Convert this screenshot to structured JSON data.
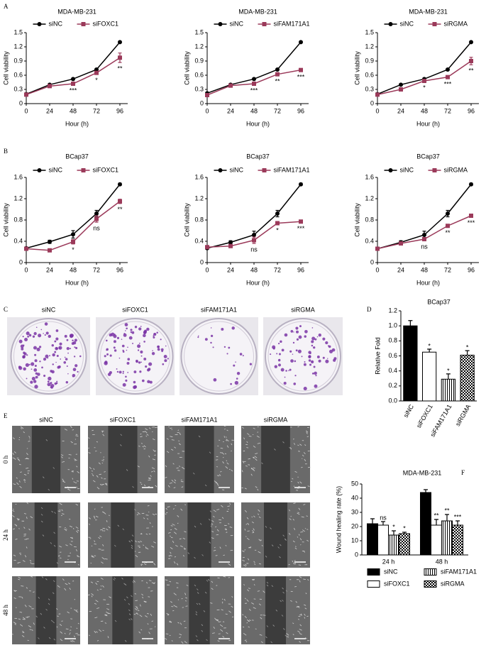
{
  "figure": {
    "panel_labels": [
      "A",
      "B",
      "C",
      "D",
      "E",
      "F"
    ],
    "colony_labels": [
      "siNC",
      "siFOXC1",
      "siFAM171A1",
      "siRGMA"
    ],
    "wound_columns": [
      "siNC",
      "siFOXC1",
      "siFAM171A1",
      "siRGMA"
    ],
    "wound_rows": [
      "0 h",
      "24 h",
      "48 h"
    ]
  },
  "chart_data": [
    {
      "type": "line",
      "title": "MDA-MB-231",
      "x": [
        0,
        24,
        48,
        72,
        96
      ],
      "xlim": [
        0,
        104
      ],
      "xticks": [
        0,
        24,
        48,
        72,
        96
      ],
      "ylim": [
        0,
        1.5
      ],
      "yticks": [
        0,
        0.3,
        0.6,
        0.9,
        1.2,
        1.5
      ],
      "xlabel": "Hour (h)",
      "ylabel": "Cell viability",
      "series": [
        {
          "name": "siNC",
          "color": "#000000",
          "marker": "circle",
          "values": [
            0.2,
            0.4,
            0.52,
            0.72,
            1.3
          ],
          "errors": [
            0.01,
            0.01,
            0.01,
            0.02,
            0.01
          ]
        },
        {
          "name": "siFOXC1",
          "color": "#9b3a5a",
          "marker": "square",
          "values": [
            0.19,
            0.37,
            0.42,
            0.65,
            0.97
          ],
          "errors": [
            0.01,
            0.01,
            0.02,
            0.03,
            0.1
          ],
          "significance": [
            null,
            null,
            "***",
            "*",
            "**"
          ]
        }
      ]
    },
    {
      "type": "line",
      "title": "MDA-MB-231",
      "x": [
        0,
        24,
        48,
        72,
        96
      ],
      "xlim": [
        0,
        104
      ],
      "xticks": [
        0,
        24,
        48,
        72,
        96
      ],
      "ylim": [
        0,
        1.5
      ],
      "yticks": [
        0,
        0.3,
        0.6,
        0.9,
        1.2,
        1.5
      ],
      "xlabel": "Hour (h)",
      "ylabel": "Cell viability",
      "series": [
        {
          "name": "siNC",
          "color": "#000000",
          "marker": "circle",
          "values": [
            0.22,
            0.4,
            0.52,
            0.72,
            1.3
          ],
          "errors": [
            0.01,
            0.01,
            0.01,
            0.02,
            0.01
          ]
        },
        {
          "name": "siFAM171A1",
          "color": "#9b3a5a",
          "marker": "square",
          "values": [
            0.18,
            0.38,
            0.42,
            0.62,
            0.71
          ],
          "errors": [
            0.01,
            0.01,
            0.02,
            0.02,
            0.02
          ],
          "significance": [
            null,
            null,
            "***",
            "**",
            "***"
          ]
        }
      ]
    },
    {
      "type": "line",
      "title": "MDA-MB-231",
      "x": [
        0,
        24,
        48,
        72,
        96
      ],
      "xlim": [
        0,
        104
      ],
      "xticks": [
        0,
        24,
        48,
        72,
        96
      ],
      "ylim": [
        0,
        1.5
      ],
      "yticks": [
        0,
        0.3,
        0.6,
        0.9,
        1.2,
        1.5
      ],
      "xlabel": "Hour (h)",
      "ylabel": "Cell viability",
      "series": [
        {
          "name": "siNC",
          "color": "#000000",
          "marker": "circle",
          "values": [
            0.2,
            0.4,
            0.52,
            0.72,
            1.3
          ],
          "errors": [
            0.01,
            0.01,
            0.01,
            0.02,
            0.01
          ]
        },
        {
          "name": "siRGMA",
          "color": "#9b3a5a",
          "marker": "square",
          "values": [
            0.19,
            0.3,
            0.48,
            0.56,
            0.9
          ],
          "errors": [
            0.01,
            0.01,
            0.02,
            0.02,
            0.08
          ],
          "significance": [
            null,
            null,
            "*",
            "***",
            "**"
          ]
        }
      ]
    },
    {
      "type": "line",
      "title": "BCap37",
      "x": [
        0,
        24,
        48,
        72,
        96
      ],
      "xlim": [
        0,
        104
      ],
      "xticks": [
        0,
        24,
        48,
        72,
        96
      ],
      "ylim": [
        0,
        1.6
      ],
      "yticks": [
        0,
        0.4,
        0.8,
        1.2,
        1.6
      ],
      "xlabel": "Hour (h)",
      "ylabel": "Cell viability",
      "series": [
        {
          "name": "siNC",
          "color": "#000000",
          "marker": "circle",
          "values": [
            0.27,
            0.39,
            0.53,
            0.92,
            1.47
          ],
          "errors": [
            0.02,
            0.03,
            0.07,
            0.06,
            0.02
          ]
        },
        {
          "name": "siFOXC1",
          "color": "#9b3a5a",
          "marker": "square",
          "values": [
            0.26,
            0.23,
            0.39,
            0.82,
            1.15
          ],
          "errors": [
            0.02,
            0.02,
            0.04,
            0.06,
            0.04
          ],
          "significance": [
            null,
            null,
            "*",
            "ns",
            "**"
          ]
        }
      ]
    },
    {
      "type": "line",
      "title": "BCap37",
      "x": [
        0,
        24,
        48,
        72,
        96
      ],
      "xlim": [
        0,
        104
      ],
      "xticks": [
        0,
        24,
        48,
        72,
        96
      ],
      "ylim": [
        0,
        1.6
      ],
      "yticks": [
        0,
        0.4,
        0.8,
        1.2,
        1.6
      ],
      "xlabel": "Hour (h)",
      "ylabel": "Cell viability",
      "series": [
        {
          "name": "siNC",
          "color": "#000000",
          "marker": "circle",
          "values": [
            0.27,
            0.38,
            0.52,
            0.92,
            1.47
          ],
          "errors": [
            0.02,
            0.03,
            0.07,
            0.06,
            0.02
          ]
        },
        {
          "name": "siFAM171A1",
          "color": "#9b3a5a",
          "marker": "square",
          "values": [
            0.29,
            0.31,
            0.42,
            0.74,
            0.77
          ],
          "errors": [
            0.02,
            0.02,
            0.06,
            0.02,
            0.02
          ],
          "significance": [
            null,
            null,
            "ns",
            "*",
            "***"
          ]
        }
      ]
    },
    {
      "type": "line",
      "title": "BCap37",
      "x": [
        0,
        24,
        48,
        72,
        96
      ],
      "xlim": [
        0,
        104
      ],
      "xticks": [
        0,
        24,
        48,
        72,
        96
      ],
      "ylim": [
        0,
        1.6
      ],
      "yticks": [
        0,
        0.4,
        0.8,
        1.2,
        1.6
      ],
      "xlabel": "Hour (h)",
      "ylabel": "Cell viability",
      "series": [
        {
          "name": "siNC",
          "color": "#000000",
          "marker": "circle",
          "values": [
            0.26,
            0.38,
            0.52,
            0.92,
            1.47
          ],
          "errors": [
            0.02,
            0.03,
            0.07,
            0.06,
            0.02
          ]
        },
        {
          "name": "siRGMA",
          "color": "#9b3a5a",
          "marker": "square",
          "values": [
            0.26,
            0.36,
            0.44,
            0.69,
            0.88
          ],
          "errors": [
            0.02,
            0.02,
            0.03,
            0.02,
            0.02
          ],
          "significance": [
            null,
            null,
            "ns",
            "**",
            "***"
          ]
        }
      ]
    },
    {
      "type": "bar",
      "title": "BCap37",
      "categories": [
        "siNC",
        "siFOXC1",
        "siFAM171A1",
        "siRGMA"
      ],
      "values": [
        1.0,
        0.65,
        0.29,
        0.61
      ],
      "errors": [
        0.07,
        0.04,
        0.07,
        0.06
      ],
      "fills": [
        "solid",
        "none",
        "vertical-stripes",
        "checkerboard"
      ],
      "color": "#000000",
      "significance": [
        null,
        "*",
        "*",
        "*"
      ],
      "ylim": [
        0,
        1.2
      ],
      "yticks": [
        {
          "value": 0,
          "label": "0.0"
        },
        0.2,
        0.4,
        0.6,
        0.8,
        {
          "value": 1,
          "label": "1.0"
        },
        1.2
      ],
      "ylabel": "Relative Fold"
    },
    {
      "type": "grouped-bar",
      "title": "MDA-MB-231",
      "categories": [
        "24 h",
        "48 h"
      ],
      "color": "#000000",
      "legend": "bottom",
      "ylim": [
        0,
        50
      ],
      "yticks": [
        0,
        10,
        20,
        30,
        40,
        50
      ],
      "ylabel": "Wound healing rate (%)",
      "series": [
        {
          "name": "siNC",
          "fill": "solid",
          "values": [
            22,
            44
          ],
          "errors": [
            3.5,
            2
          ]
        },
        {
          "name": "siFOXC1",
          "fill": "none",
          "values": [
            21,
            21
          ],
          "errors": [
            2.5,
            4
          ],
          "significance": [
            "ns",
            "**"
          ]
        },
        {
          "name": "siFAM171A1",
          "fill": "vertical-stripes",
          "values": [
            14,
            24
          ],
          "errors": [
            3,
            4.5
          ],
          "significance": [
            "*",
            "**"
          ]
        },
        {
          "name": "siRGMA",
          "fill": "checkerboard",
          "values": [
            15,
            21
          ],
          "errors": [
            1,
            3
          ],
          "significance": [
            "*",
            "***"
          ]
        }
      ]
    }
  ]
}
